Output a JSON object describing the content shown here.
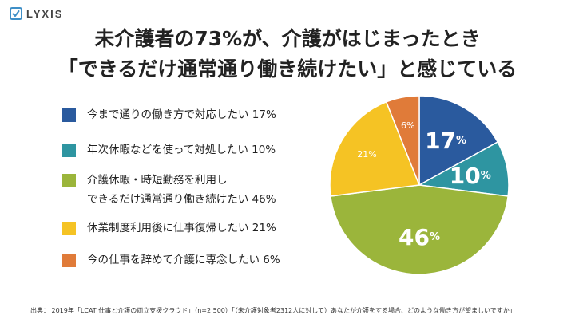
{
  "brand": {
    "name": "LYXIS",
    "color": "#3e8fc7"
  },
  "title": {
    "line1": "未介護者の73%が、介護がはじまったとき",
    "line2": "「できるだけ通常通り働き続けたい」と感じている"
  },
  "legend": [
    {
      "lines": [
        "今まで通りの働き方で対応したい 17%"
      ],
      "color": "#2a5a9e"
    },
    {
      "lines": [
        "年次休暇などを使って対処したい 10%"
      ],
      "color": "#2e95a1"
    },
    {
      "lines": [
        "介護休暇・時短勤務を利用し",
        "できるだけ通常通り働き続けたい 46%"
      ],
      "color": "#9bb53b"
    },
    {
      "lines": [
        "休業制度利用後に仕事復帰したい 21%"
      ],
      "color": "#f5c324"
    },
    {
      "lines": [
        "今の仕事を辞めて介護に専念したい 6%"
      ],
      "color": "#e07b39"
    }
  ],
  "chart_data": {
    "type": "pie",
    "start": "12 o'clock, clockwise",
    "slices": [
      {
        "label": "今まで通りの働き方で対応したい",
        "value": 17,
        "display": "17",
        "unit": "%",
        "color": "#2a5a9e",
        "label_color": "#ffffff",
        "emphasis": "large"
      },
      {
        "label": "年次休暇などを使って対処したい",
        "value": 10,
        "display": "10",
        "unit": "%",
        "color": "#2e95a1",
        "label_color": "#ffffff",
        "emphasis": "large"
      },
      {
        "label": "介護休暇・時短勤務を利用しできるだけ通常通り働き続けたい",
        "value": 46,
        "display": "46",
        "unit": "%",
        "color": "#9bb53b",
        "label_color": "#ffffff",
        "emphasis": "large"
      },
      {
        "label": "休業制度利用後に仕事復帰したい",
        "value": 21,
        "display": "21",
        "unit": "%",
        "color": "#f5c324",
        "label_color": "#ffffff",
        "emphasis": "small"
      },
      {
        "label": "今の仕事を辞めて介護に専念したい",
        "value": 6,
        "display": "6",
        "unit": "%",
        "color": "#e07b39",
        "label_color": "#ffffff",
        "emphasis": "small"
      }
    ]
  },
  "source": "出典： 2019年「LCAT 仕事と介護の両立支援クラウド」（n=2,500）「（未介護対象者2312人に対して）あなたが介護をする場合、どのような働き方が望ましいですか」"
}
